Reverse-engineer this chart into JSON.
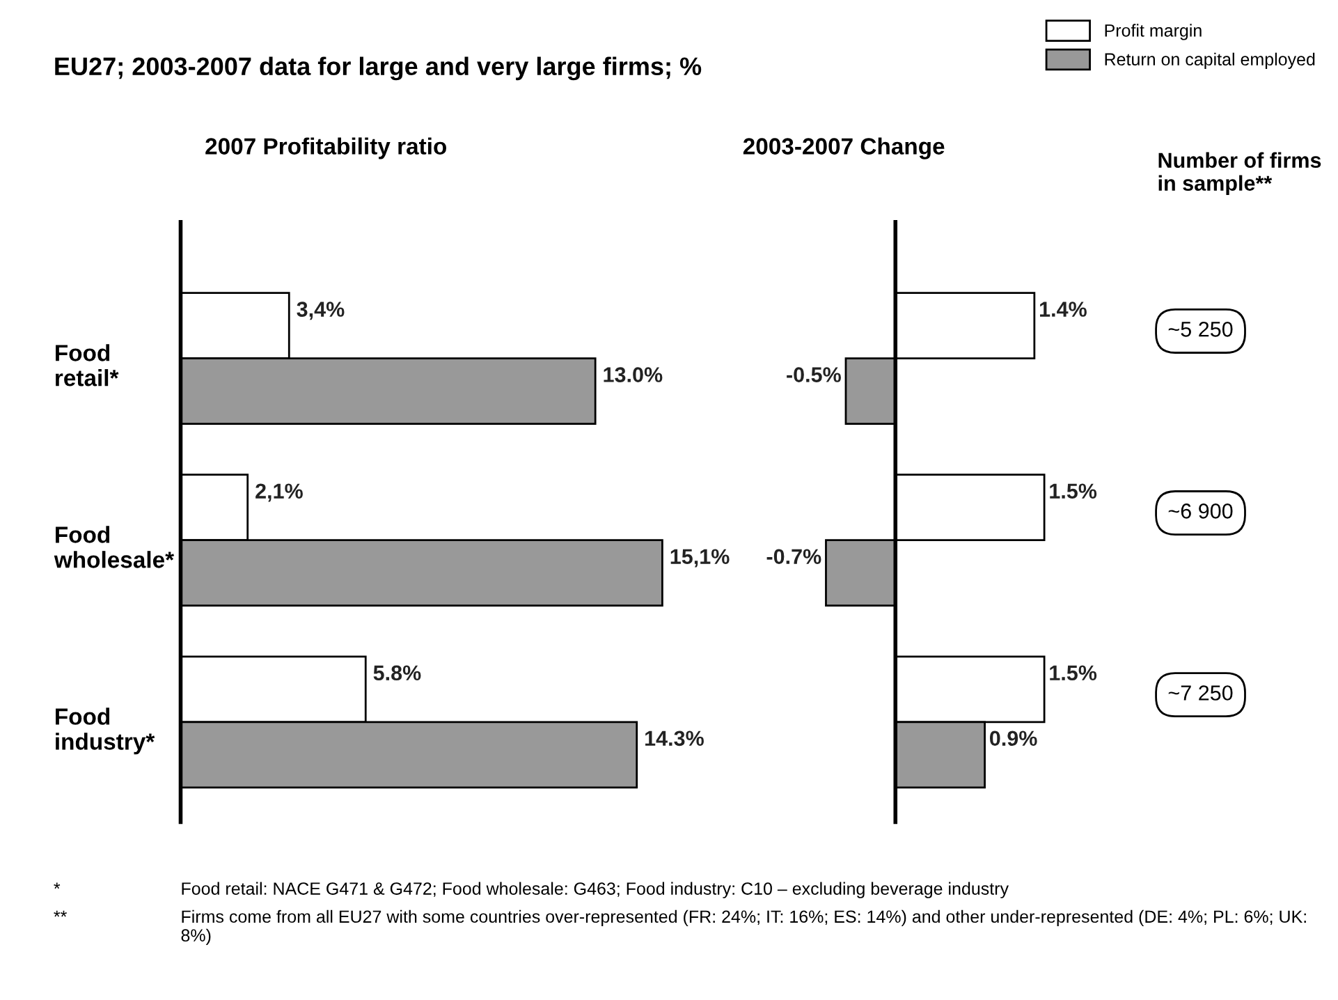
{
  "chart_data": [
    {
      "type": "bar",
      "orientation": "horizontal",
      "title": "EU27; 2003-2007 data for large and very large firms; %",
      "subtitle": "2007 Profitability ratio",
      "categories": [
        "Food\nretail*",
        "Food\nwholesale*",
        "Food\nindustry*"
      ],
      "series": [
        {
          "name": "Profit margin",
          "color": "#ffffff",
          "values": [
            3.4,
            2.1,
            5.8
          ],
          "value_labels": [
            "3,4%",
            "2,1%",
            "5.8%"
          ]
        },
        {
          "name": "Return on capital employed",
          "color": "#999999",
          "values": [
            13.0,
            15.1,
            14.3
          ],
          "value_labels": [
            "13.0%",
            "15,1%",
            "14.3%"
          ]
        }
      ],
      "legend": "top right",
      "tick_labels": "y",
      "annotations": [
        "*",
        "Food retail: NACE G471 & G472; Food wholesale: G463; Food industry: C10 – excluding beverage industry",
        "**",
        "Firms come from all EU27 with some countries over-represented (FR: 24%; IT: 16%; ES: 14%) and other under-represented (DE: 4%; PL: 6%; UK: 8%)"
      ]
    },
    {
      "type": "bar",
      "orientation": "horizontal",
      "subtitle": "2003-2007 Change",
      "categories": [
        null,
        null,
        null
      ],
      "series": [
        {
          "color": "#ffffff",
          "values": [
            1.4,
            1.5,
            1.5
          ],
          "value_labels": [
            "1.4%",
            "1.5%",
            "1.5%"
          ]
        },
        {
          "color": "#999999",
          "values": [
            -0.5,
            -0.7,
            0.9
          ],
          "value_labels": [
            "-0.5%",
            "-0.7%",
            "0.9%"
          ]
        }
      ],
      "tick_labels": false,
      "annotations": [
        "Number of firms\nin sample**",
        "~5 250",
        "~6 900",
        "~7 250"
      ]
    }
  ]
}
